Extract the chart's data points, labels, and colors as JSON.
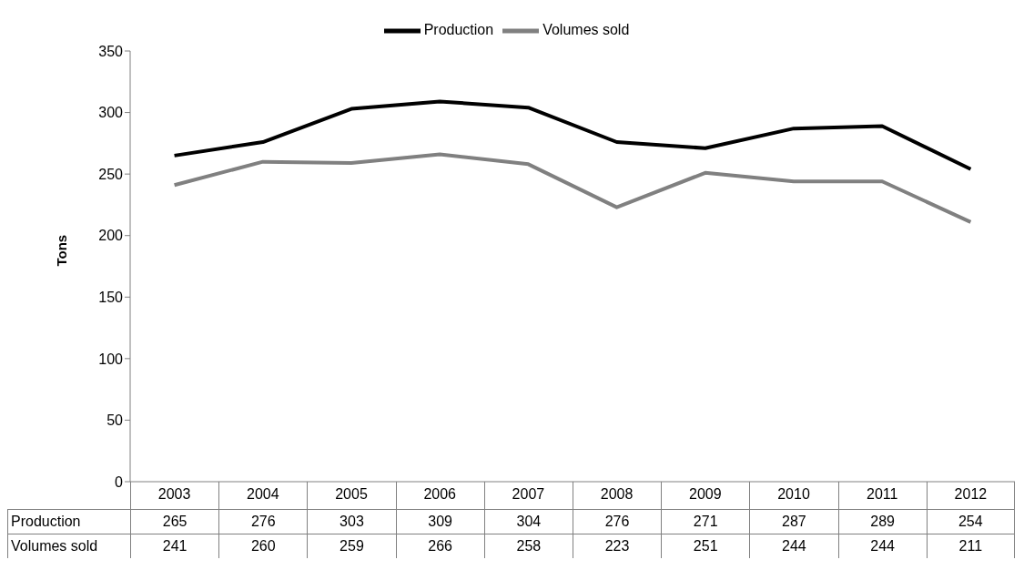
{
  "chart_data": {
    "type": "line",
    "ylabel": "Tons",
    "categories": [
      "2003",
      "2004",
      "2005",
      "2006",
      "2007",
      "2008",
      "2009",
      "2010",
      "2011",
      "2012"
    ],
    "series": [
      {
        "name": "Production",
        "color": "#000000",
        "values": [
          265,
          276,
          303,
          309,
          304,
          276,
          271,
          287,
          289,
          254
        ]
      },
      {
        "name": "Volumes sold",
        "color": "#808080",
        "values": [
          241,
          260,
          259,
          266,
          258,
          223,
          251,
          244,
          244,
          211
        ]
      }
    ],
    "ylim": [
      0,
      350
    ],
    "yticks": [
      0,
      50,
      100,
      150,
      200,
      250,
      300,
      350
    ],
    "grid": false,
    "legend": "top",
    "marker": "none",
    "data_labels": true
  }
}
